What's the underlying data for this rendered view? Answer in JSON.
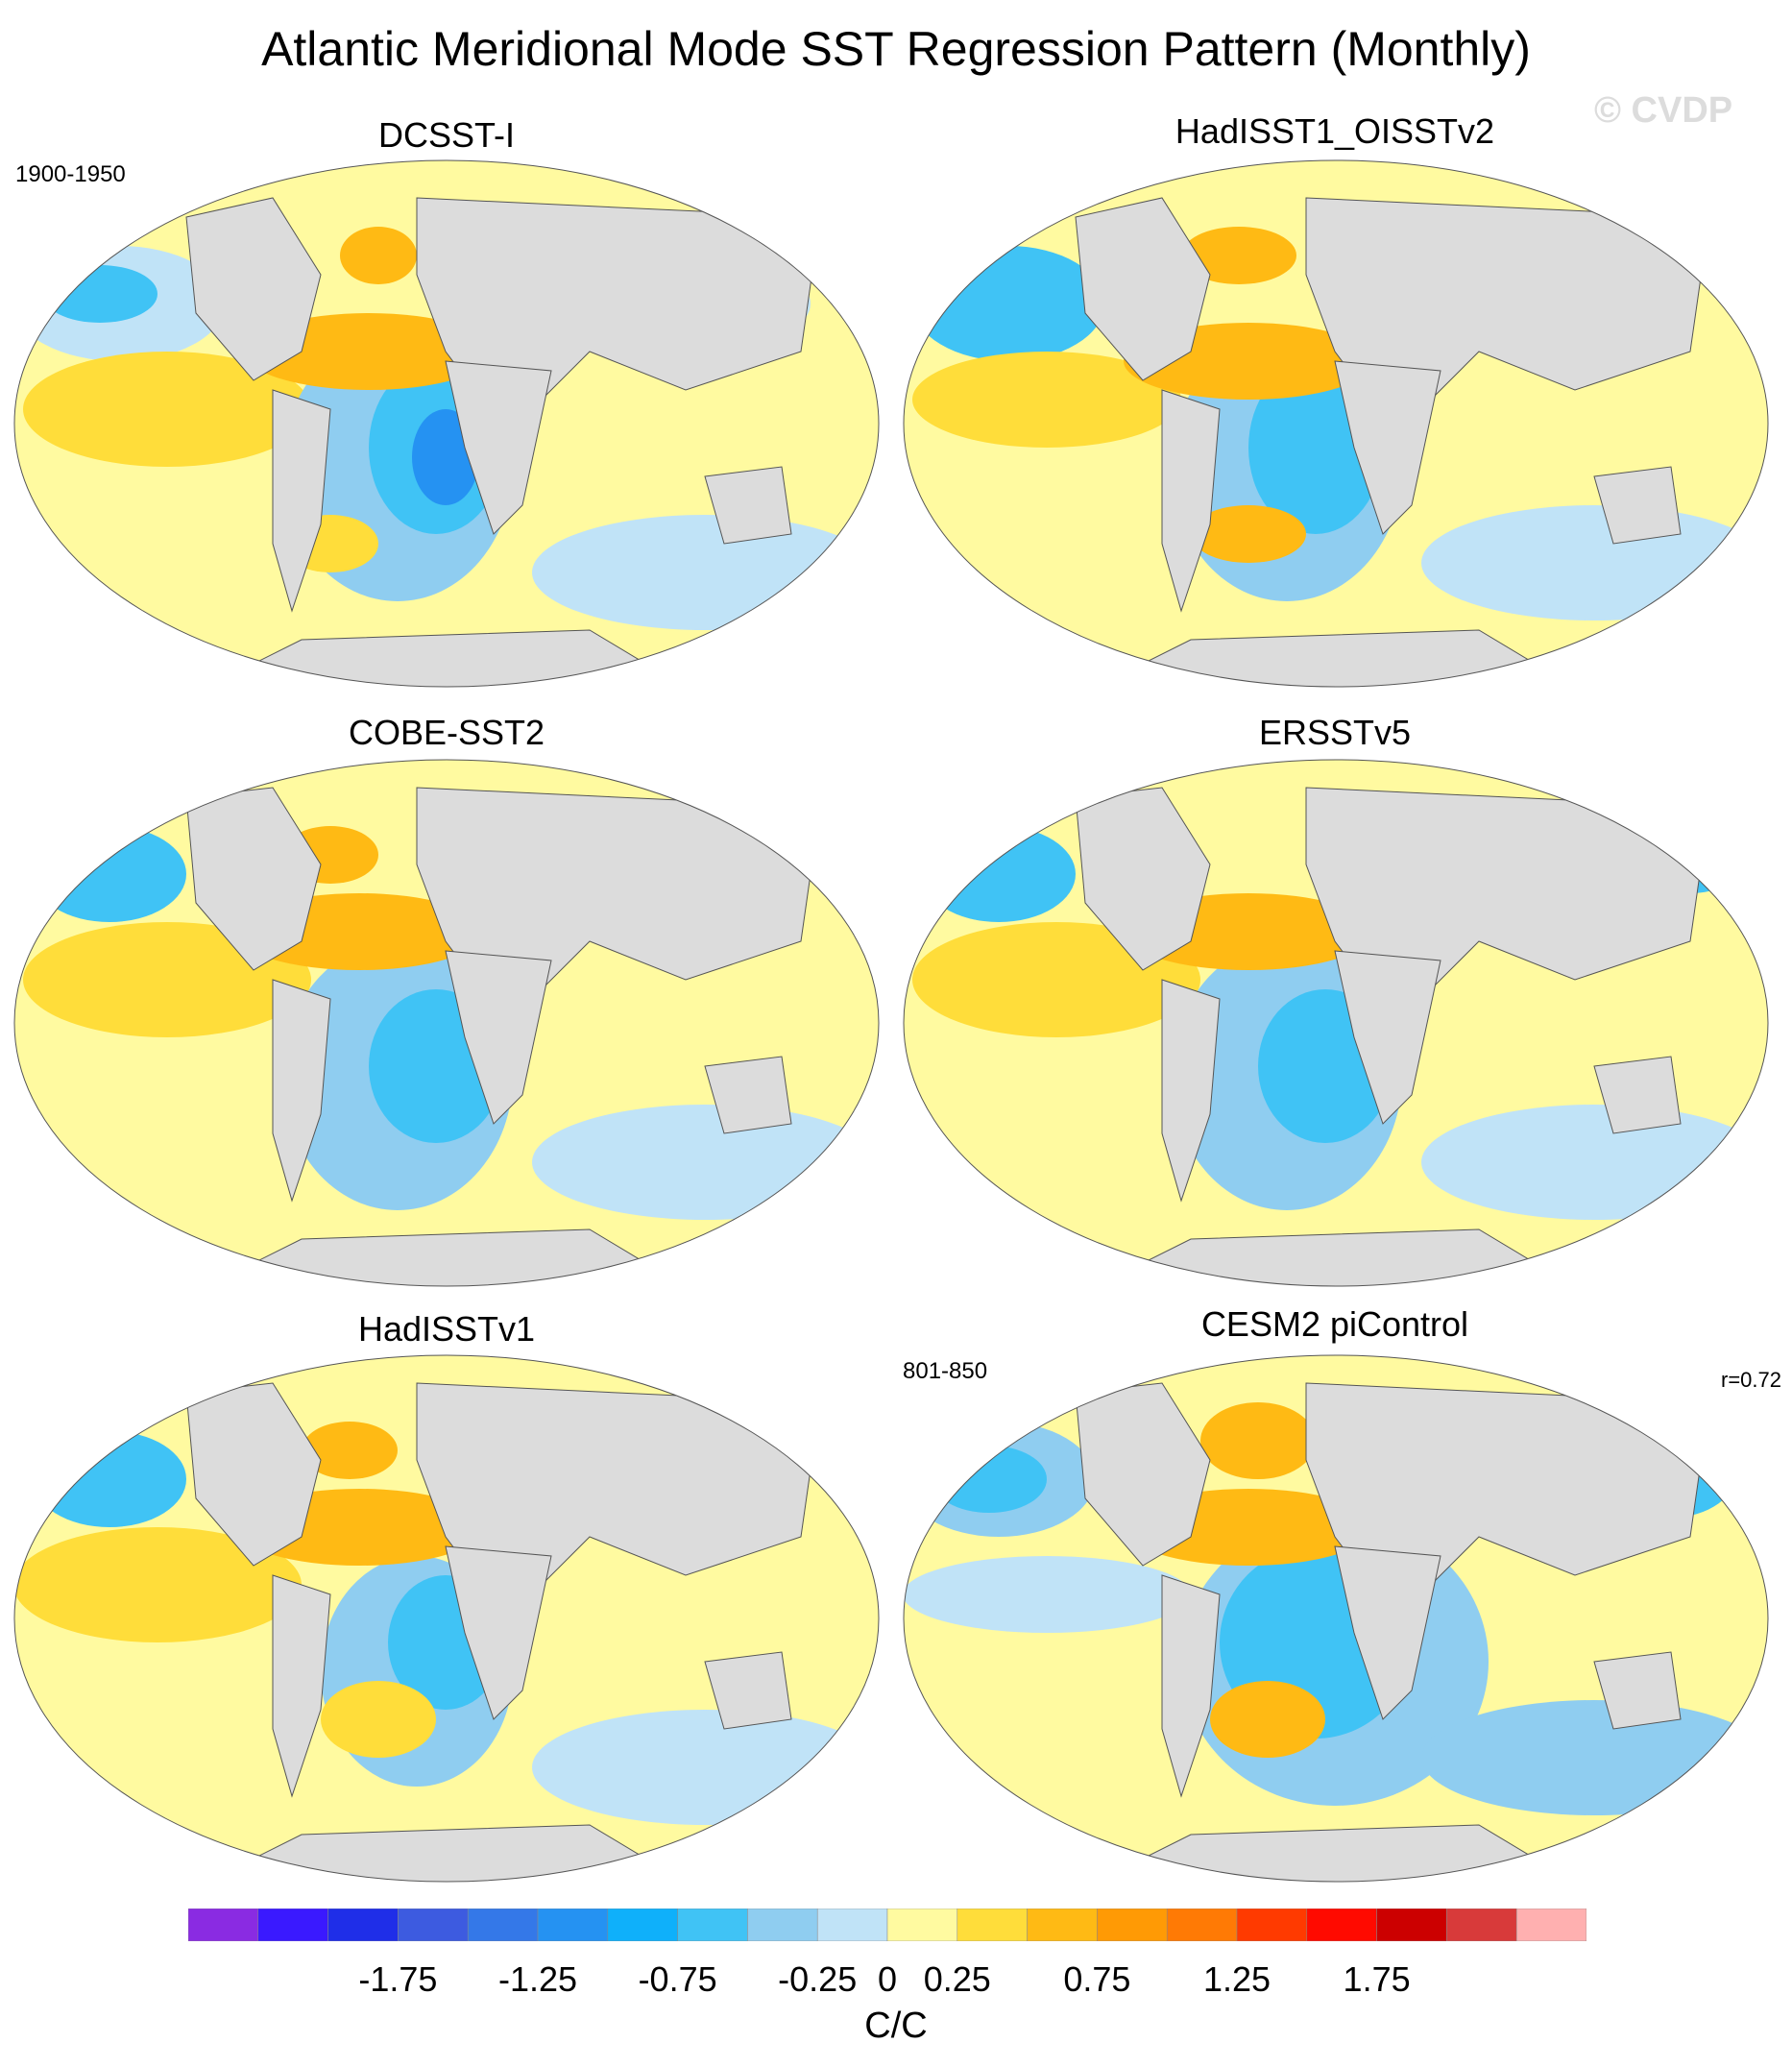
{
  "title": "Atlantic Meridional Mode SST Regression Pattern (Monthly)",
  "watermark": "© CVDP",
  "panels": [
    {
      "name": "DCSST-I",
      "period": "1900-1950",
      "r": ""
    },
    {
      "name": "HadISST1_OISSTv2",
      "period": "",
      "r": ""
    },
    {
      "name": "COBE-SST2",
      "period": "",
      "r": ""
    },
    {
      "name": "ERSSTv5",
      "period": "",
      "r": ""
    },
    {
      "name": "HadISSTv1",
      "period": "",
      "r": ""
    },
    {
      "name": "CESM2 piControl",
      "period": "801-850",
      "r": "r=0.72"
    }
  ],
  "colorbar": {
    "units": "C/C",
    "colors": [
      "#8a2be2",
      "#3a19ff",
      "#1f2ee8",
      "#3d5be0",
      "#3478e8",
      "#2592f2",
      "#0fb0fa",
      "#40c3f5",
      "#8fcdf0",
      "#c0e3f7",
      "#fffaa0",
      "#ffdd3a",
      "#ffba14",
      "#ff9a05",
      "#ff7a05",
      "#ff3a00",
      "#ff0a00",
      "#cc0000",
      "#d83a3a",
      "#ffb0b0"
    ],
    "tick_labels": [
      "-1.75",
      "-1.25",
      "-0.75",
      "-0.25",
      "0",
      "0.25",
      "0.75",
      "1.25",
      "1.75"
    ],
    "tick_values": [
      -1.75,
      -1.25,
      -0.75,
      -0.25,
      0,
      0.25,
      0.75,
      1.25,
      1.75
    ]
  }
}
